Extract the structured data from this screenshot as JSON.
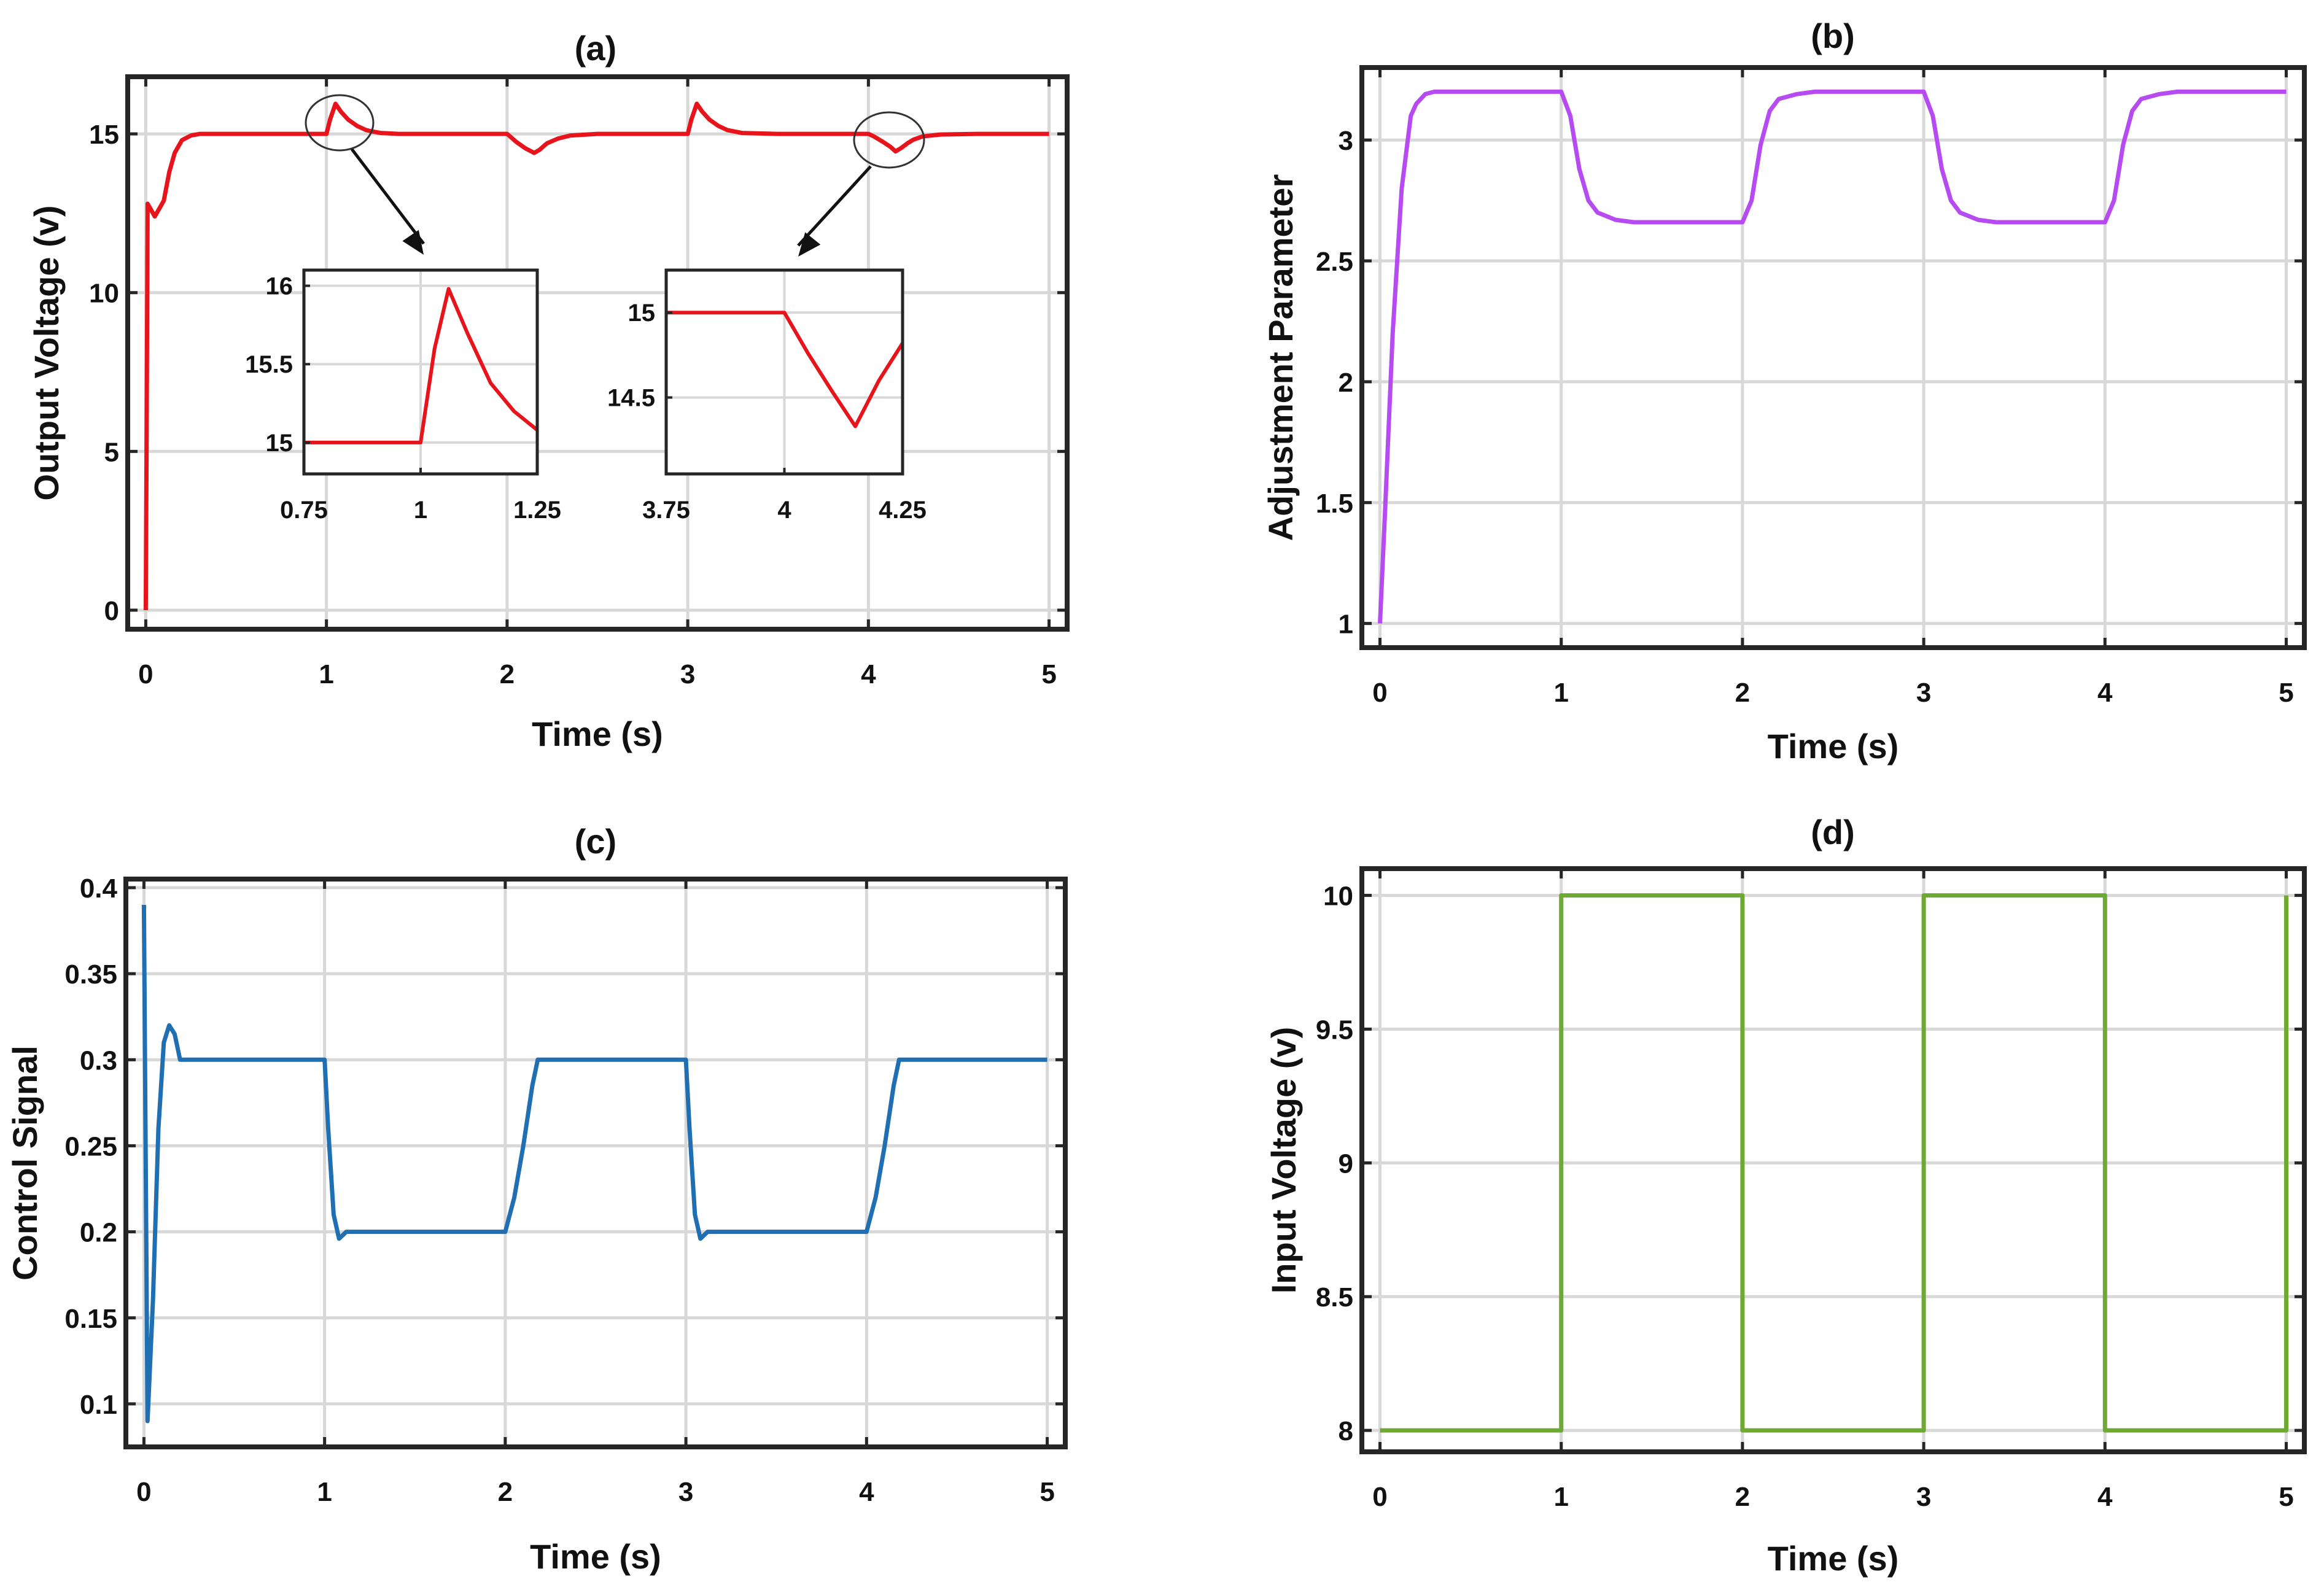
{
  "chart_data": [
    {
      "id": "a",
      "type": "line",
      "title": "(a)",
      "xlabel": "Time (s)",
      "ylabel": "Output Voltage (v)",
      "xlim": [
        -0.1,
        5.1
      ],
      "ylim": [
        -0.6,
        16.8
      ],
      "xticks": [
        0,
        1,
        2,
        3,
        4,
        5
      ],
      "yticks": [
        0,
        5,
        10,
        15
      ],
      "grid": true,
      "series": [
        {
          "name": "Output Voltage",
          "color": "#e8141b",
          "x": [
            0,
            0.005,
            0.01,
            0.02,
            0.05,
            0.08,
            0.1,
            0.13,
            0.16,
            0.2,
            0.25,
            0.3,
            0.4,
            0.6,
            0.8,
            1.0,
            1.02,
            1.05,
            1.08,
            1.12,
            1.17,
            1.22,
            1.25,
            1.3,
            1.4,
            1.6,
            1.8,
            2.0,
            2.02,
            2.05,
            2.1,
            2.15,
            2.18,
            2.22,
            2.28,
            2.35,
            2.5,
            2.8,
            3.0,
            3.02,
            3.05,
            3.08,
            3.12,
            3.17,
            3.22,
            3.3,
            3.5,
            3.8,
            4.0,
            4.03,
            4.08,
            4.12,
            4.15,
            4.18,
            4.22,
            4.25,
            4.3,
            4.4,
            4.6,
            5.0
          ],
          "y": [
            0,
            6,
            12.8,
            12.7,
            12.4,
            12.7,
            12.9,
            13.8,
            14.4,
            14.8,
            14.95,
            15,
            15,
            15,
            15,
            15,
            15.45,
            15.95,
            15.7,
            15.45,
            15.25,
            15.12,
            15.08,
            15.03,
            15,
            15,
            15,
            15,
            14.9,
            14.75,
            14.55,
            14.4,
            14.5,
            14.7,
            14.85,
            14.95,
            15,
            15,
            15,
            15.45,
            15.95,
            15.7,
            15.45,
            15.25,
            15.12,
            15.03,
            15,
            15,
            15,
            14.92,
            14.75,
            14.6,
            14.45,
            14.55,
            14.72,
            14.82,
            14.92,
            14.98,
            15,
            15
          ]
        }
      ],
      "insets": [
        {
          "xlim": [
            0.75,
            1.25
          ],
          "ylim": [
            14.8,
            16.1
          ],
          "xticks": [
            "0.75",
            "1",
            "1.25"
          ],
          "yticks": [
            "15",
            "15.5",
            "16"
          ],
          "ytick_values": [
            15,
            15.5,
            16
          ],
          "x": [
            0.75,
            1.0,
            1.03,
            1.06,
            1.1,
            1.15,
            1.2,
            1.25
          ],
          "y": [
            15,
            15,
            15.6,
            15.98,
            15.7,
            15.38,
            15.2,
            15.08
          ]
        },
        {
          "xlim": [
            3.75,
            4.25
          ],
          "ylim": [
            14.05,
            15.25
          ],
          "xticks": [
            "3.75",
            "4",
            "4.25"
          ],
          "yticks": [
            "14.5",
            "15"
          ],
          "ytick_values": [
            14.5,
            15
          ],
          "x": [
            3.75,
            4.0,
            4.05,
            4.1,
            4.15,
            4.2,
            4.25
          ],
          "y": [
            15,
            15,
            14.76,
            14.54,
            14.33,
            14.6,
            14.82
          ]
        }
      ]
    },
    {
      "id": "b",
      "type": "line",
      "title": "(b)",
      "xlabel": "Time (s)",
      "ylabel": "Adjustment Parameter",
      "xlim": [
        -0.1,
        5.1
      ],
      "ylim": [
        0.9,
        3.3
      ],
      "xticks": [
        0,
        1,
        2,
        3,
        4,
        5
      ],
      "yticks": [
        1,
        1.5,
        2,
        2.5,
        3
      ],
      "grid": true,
      "series": [
        {
          "name": "Adjustment Parameter",
          "color": "#b54bf0",
          "x": [
            0,
            0.03,
            0.07,
            0.12,
            0.17,
            0.2,
            0.25,
            0.3,
            0.4,
            0.6,
            1.0,
            1.05,
            1.1,
            1.15,
            1.2,
            1.3,
            1.4,
            1.6,
            2.0,
            2.05,
            2.1,
            2.15,
            2.2,
            2.3,
            2.4,
            2.6,
            3.0,
            3.05,
            3.1,
            3.15,
            3.2,
            3.3,
            3.4,
            3.6,
            4.0,
            4.05,
            4.1,
            4.15,
            4.2,
            4.3,
            4.4,
            4.6,
            5.0
          ],
          "y": [
            1.0,
            1.5,
            2.2,
            2.8,
            3.1,
            3.15,
            3.19,
            3.2,
            3.2,
            3.2,
            3.2,
            3.1,
            2.88,
            2.75,
            2.7,
            2.67,
            2.66,
            2.66,
            2.66,
            2.75,
            2.98,
            3.12,
            3.17,
            3.19,
            3.2,
            3.2,
            3.2,
            3.1,
            2.88,
            2.75,
            2.7,
            2.67,
            2.66,
            2.66,
            2.66,
            2.75,
            2.98,
            3.12,
            3.17,
            3.19,
            3.2,
            3.2,
            3.2
          ]
        }
      ]
    },
    {
      "id": "c",
      "type": "line",
      "title": "(c)",
      "xlabel": "Time (s)",
      "ylabel": "Control Signal",
      "xlim": [
        -0.1,
        5.1
      ],
      "ylim": [
        0.075,
        0.405
      ],
      "xticks": [
        0,
        1,
        2,
        3,
        4,
        5
      ],
      "yticks": [
        0.1,
        0.15,
        0.2,
        0.25,
        0.3,
        0.35,
        0.4
      ],
      "ytick_labels": [
        "0.1",
        "0.15",
        "0.2",
        "0.25",
        "0.3",
        "0.35",
        "0.4"
      ],
      "grid": true,
      "series": [
        {
          "name": "Control Signal",
          "color": "#1f6fb2",
          "x": [
            0,
            0.02,
            0.05,
            0.08,
            0.11,
            0.14,
            0.17,
            0.2,
            0.22,
            0.25,
            0.3,
            0.5,
            1.0,
            1.02,
            1.05,
            1.08,
            1.12,
            1.2,
            1.5,
            2.0,
            2.05,
            2.1,
            2.15,
            2.18,
            2.3,
            2.6,
            3.0,
            3.02,
            3.05,
            3.08,
            3.12,
            3.2,
            3.5,
            4.0,
            4.05,
            4.1,
            4.15,
            4.18,
            4.3,
            4.6,
            5.0
          ],
          "y": [
            0.39,
            0.09,
            0.16,
            0.26,
            0.31,
            0.32,
            0.315,
            0.3,
            0.3,
            0.3,
            0.3,
            0.3,
            0.3,
            0.26,
            0.21,
            0.196,
            0.2,
            0.2,
            0.2,
            0.2,
            0.22,
            0.25,
            0.285,
            0.3,
            0.3,
            0.3,
            0.3,
            0.26,
            0.21,
            0.196,
            0.2,
            0.2,
            0.2,
            0.2,
            0.22,
            0.25,
            0.285,
            0.3,
            0.3,
            0.3,
            0.3
          ]
        }
      ]
    },
    {
      "id": "d",
      "type": "line",
      "title": "(d)",
      "xlabel": "Time (s)",
      "ylabel": "Input Voltage (v)",
      "xlim": [
        -0.1,
        5.1
      ],
      "ylim": [
        7.92,
        10.1
      ],
      "xticks": [
        0,
        1,
        2,
        3,
        4,
        5
      ],
      "yticks": [
        8,
        8.5,
        9,
        9.5,
        10
      ],
      "grid": true,
      "series": [
        {
          "name": "Input Voltage",
          "color": "#6ea934",
          "x": [
            0,
            1,
            1,
            2,
            2,
            3,
            3,
            4,
            4,
            5,
            5
          ],
          "y": [
            8,
            8,
            10,
            10,
            8,
            8,
            10,
            10,
            8,
            8,
            10
          ]
        }
      ]
    }
  ]
}
